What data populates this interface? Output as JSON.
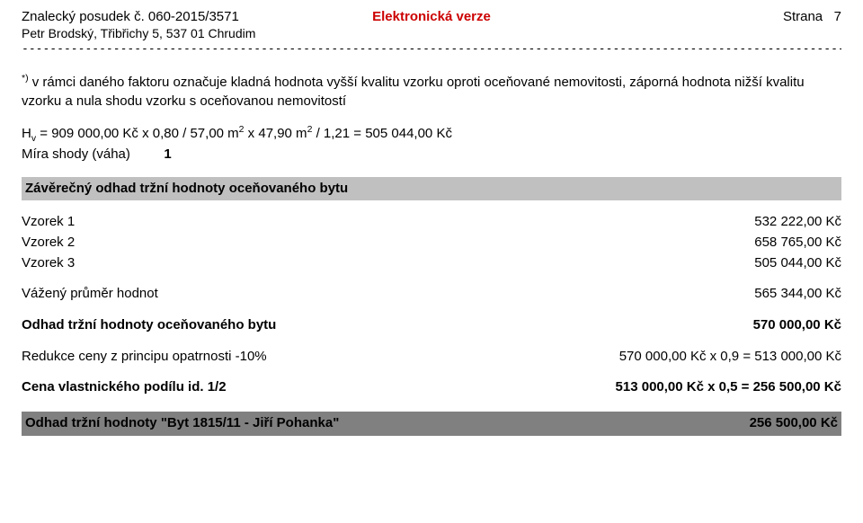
{
  "header": {
    "doc_title": "Znalecký posudek č. 060-2015/3571",
    "electronic": "Elektronická verze",
    "page_label": "Strana",
    "page_no": "7",
    "author_line": "Petr Brodský, Třibřichy 5, 537 01 Chrudim"
  },
  "note": {
    "star": "*)",
    "text": " v rámci daného faktoru označuje kladná hodnota vyšší kvalitu vzorku oproti oceňované nemovitosti, záporná hodnota nižší kvalitu vzorku a nula shodu vzorku s oceňovanou nemovitostí"
  },
  "calc": {
    "prefix": "H",
    "sub": "v",
    "formula_part1": " = 909 000,00 Kč x 0,80 / 57,00 m",
    "sq1": "2",
    "formula_part2": " x 47,90 m",
    "sq2": "2",
    "formula_part3": " / 1,21 = 505 044,00 Kč",
    "weight_label": "Míra shody (váha)",
    "weight_val": "1"
  },
  "section_title": "Závěrečný odhad tržní hodnoty oceňovaného bytu",
  "samples": [
    {
      "label": "Vzorek 1",
      "val": "532 222,00 Kč"
    },
    {
      "label": "Vzorek 2",
      "val": "658 765,00 Kč"
    },
    {
      "label": "Vzorek 3",
      "val": "505 044,00 Kč"
    }
  ],
  "weighted": {
    "label": "Vážený průměr hodnot",
    "val": "565 344,00 Kč"
  },
  "estimate": {
    "label": "Odhad tržní hodnoty oceňovaného bytu",
    "val": "570 000,00 Kč"
  },
  "reduction": {
    "label": "Redukce ceny z principu opatrnosti -10%",
    "val": "570 000,00 Kč x 0,9 = 513 000,00 Kč"
  },
  "share": {
    "label": "Cena vlastnického podílu id. 1/2",
    "val": "513 000,00 Kč x 0,5 = 256 500,00 Kč"
  },
  "footer": {
    "label": "Odhad tržní hodnoty \"Byt 1815/11 - Jiří Pohanka\"",
    "val": "256 500,00 Kč"
  },
  "colors": {
    "red": "#cc0000",
    "band": "#c0c0c0",
    "band_dark": "#808080"
  }
}
